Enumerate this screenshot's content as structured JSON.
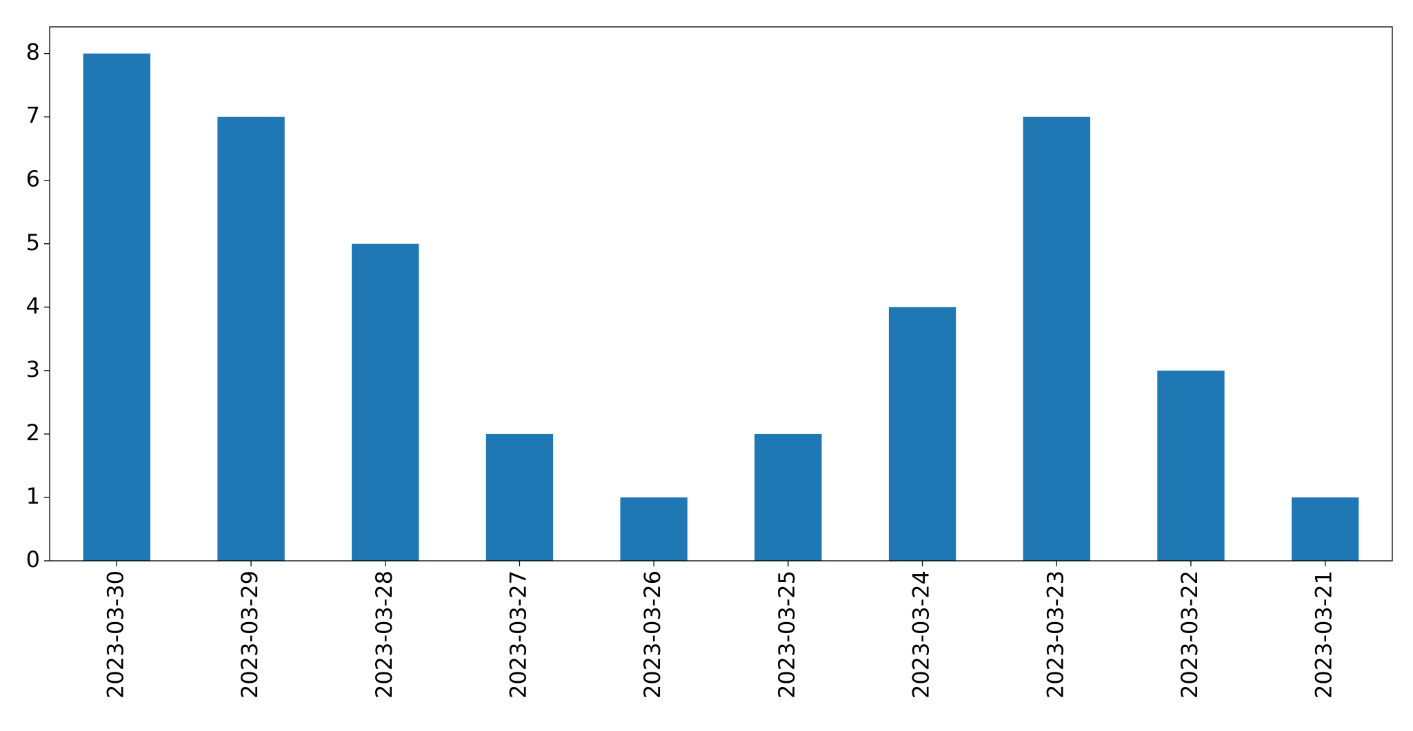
{
  "chart_data": {
    "type": "bar",
    "categories": [
      "2023-03-30",
      "2023-03-29",
      "2023-03-28",
      "2023-03-27",
      "2023-03-26",
      "2023-03-25",
      "2023-03-24",
      "2023-03-23",
      "2023-03-22",
      "2023-03-21"
    ],
    "values": [
      8,
      7,
      5,
      2,
      1,
      2,
      4,
      7,
      3,
      1
    ],
    "color": "#1f77b4",
    "ylim": [
      0,
      8.42
    ],
    "yticks": [
      0,
      1,
      2,
      3,
      4,
      5,
      6,
      7,
      8
    ],
    "grid": false
  }
}
